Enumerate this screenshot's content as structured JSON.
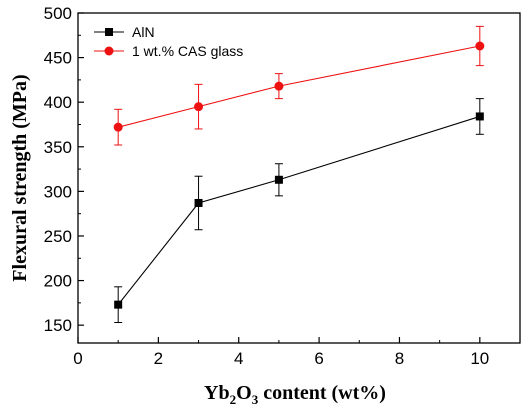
{
  "chart_data": {
    "type": "line",
    "xlabel": {
      "pre": "Yb",
      "sub1": "2",
      "mid": "O",
      "sub2": "3",
      "post": " content (wt%)"
    },
    "ylabel": "Flexural strength (MPa)",
    "xlim": [
      0,
      11
    ],
    "ylim": [
      130,
      500
    ],
    "xticks": [
      0,
      2,
      4,
      6,
      8,
      10
    ],
    "yticks": [
      150,
      200,
      250,
      300,
      350,
      400,
      450,
      500
    ],
    "legend_position": "top-left",
    "series": [
      {
        "name": "AlN",
        "color": "#000000",
        "marker": "square",
        "x": [
          1,
          3,
          5,
          10
        ],
        "y": [
          173,
          287,
          313,
          384
        ],
        "err": [
          20,
          30,
          18,
          20
        ]
      },
      {
        "name": "1 wt.% CAS glass",
        "color": "#ee1111",
        "marker": "circle",
        "x": [
          1,
          3,
          5,
          10
        ],
        "y": [
          372,
          395,
          418,
          463
        ],
        "err": [
          20,
          25,
          14,
          22
        ]
      }
    ]
  }
}
